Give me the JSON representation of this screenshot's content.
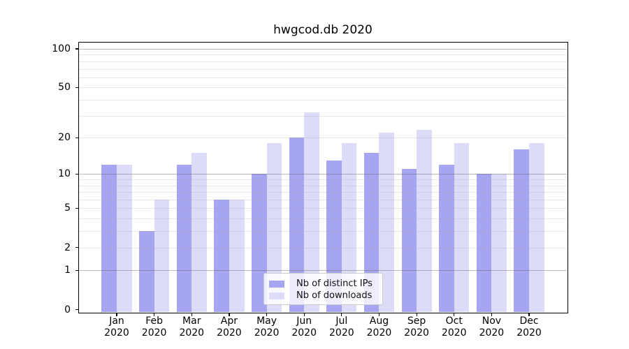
{
  "title": "hwgcod.db 2020",
  "chart_data": {
    "type": "bar",
    "title": "hwgcod.db 2020",
    "categories": [
      "Jan",
      "Feb",
      "Mar",
      "Apr",
      "May",
      "Jun",
      "Jul",
      "Aug",
      "Sep",
      "Oct",
      "Nov",
      "Dec"
    ],
    "year_label": "2020",
    "series": [
      {
        "name": "Nb of distinct IPs",
        "color": "#a5a5f2",
        "values": [
          12,
          3,
          12,
          6,
          10,
          20,
          13,
          15,
          11,
          12,
          10,
          16
        ]
      },
      {
        "name": "Nb of downloads",
        "color": "#dcdcf8",
        "values": [
          12,
          6,
          15,
          6,
          18,
          32,
          18,
          22,
          23,
          18,
          10,
          18
        ]
      }
    ],
    "xlabel": "",
    "ylabel": "",
    "y_axis": {
      "scale": "log(1+v)",
      "ylim": [
        0,
        112
      ],
      "tick_values": [
        100,
        50,
        20,
        10,
        5,
        2,
        1,
        0
      ],
      "tick_labels": [
        "100",
        "50",
        "20",
        "10",
        "5",
        "2",
        "1",
        "0"
      ],
      "major_gridlines": [
        1,
        10,
        100
      ],
      "minor_gridlines": [
        2,
        3,
        4,
        5,
        6,
        7,
        8,
        9,
        20,
        30,
        40,
        50,
        60,
        70,
        80,
        90
      ]
    },
    "grid": true,
    "legend_position": "bottom-center-inside"
  }
}
